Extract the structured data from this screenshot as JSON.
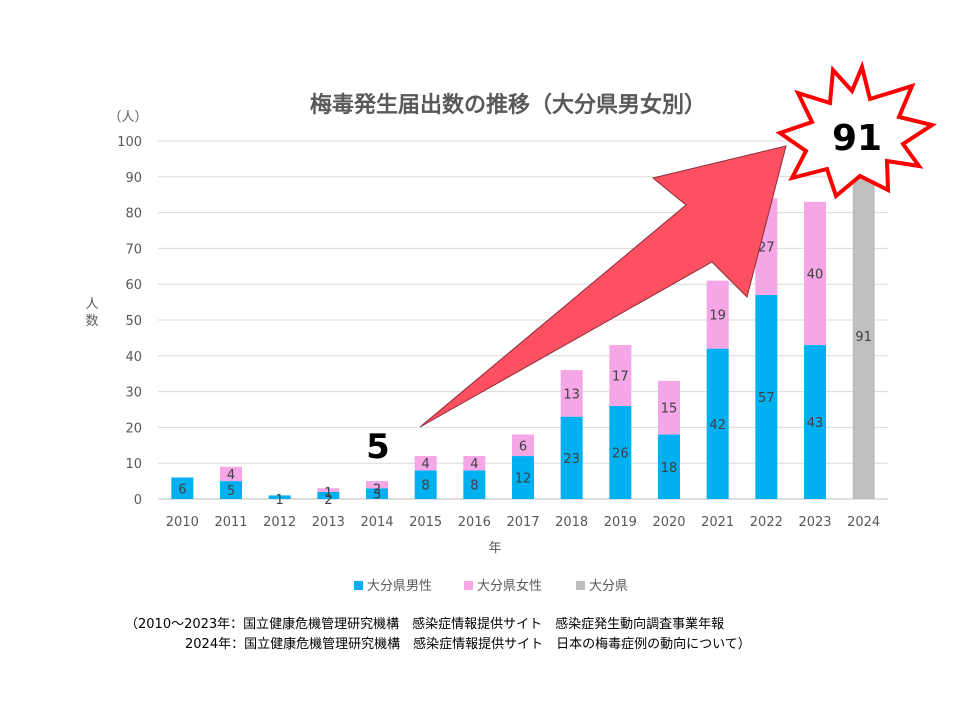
{
  "chart_data": {
    "type": "bar",
    "stacked": true,
    "title": "梅毒発生届出数の推移（大分県男女別）",
    "y_unit": "（人）",
    "ylabel": "人数",
    "xlabel": "年",
    "ylim": [
      0,
      100
    ],
    "y_ticks": [
      "0",
      "10",
      "20",
      "30",
      "40",
      "50",
      "60",
      "70",
      "80",
      "90",
      "100"
    ],
    "grid": true,
    "legend_position": "bottom",
    "categories": [
      "2010",
      "2011",
      "2012",
      "2013",
      "2014",
      "2015",
      "2016",
      "2017",
      "2018",
      "2019",
      "2020",
      "2021",
      "2022",
      "2023",
      "2024"
    ],
    "series": [
      {
        "name": "大分県男性",
        "color": "#00B0F0",
        "values": [
          6,
          5,
          1,
          2,
          3,
          8,
          8,
          12,
          23,
          26,
          18,
          42,
          57,
          43,
          null
        ],
        "labels": [
          "6",
          "5",
          "1",
          "2",
          "3",
          "8",
          "8",
          "12",
          "23",
          "26",
          "18",
          "42",
          "57",
          "43",
          ""
        ]
      },
      {
        "name": "大分県女性",
        "color": "#F4A6E6",
        "values": [
          null,
          4,
          null,
          1,
          2,
          4,
          4,
          6,
          13,
          17,
          15,
          19,
          27,
          40,
          null
        ],
        "labels": [
          "",
          "4",
          "",
          "1",
          "2",
          "4",
          "4",
          "6",
          "13",
          "17",
          "15",
          "19",
          "27",
          "40",
          ""
        ]
      },
      {
        "name": "大分県",
        "color": "#BFBFBF",
        "values": [
          null,
          null,
          null,
          null,
          null,
          null,
          null,
          null,
          null,
          null,
          null,
          null,
          null,
          null,
          91
        ],
        "labels": [
          "",
          "",
          "",
          "",
          "",
          "",
          "",
          "",
          "",
          "",
          "",
          "",
          "",
          "",
          "91"
        ]
      }
    ],
    "annotations": {
      "callout_2014": "5",
      "callout_2024": "91",
      "arrow_color": "#FF5061",
      "burst_color": "#FF0000"
    }
  },
  "source": {
    "line1": "（2010～2023年：国立健康危機管理研究機構　感染症情報提供サイト　感染症発生動向調査事業年報",
    "line2": "2024年：国立健康危機管理研究機構　感染症情報提供サイト　日本の梅毒症例の動向について）"
  }
}
